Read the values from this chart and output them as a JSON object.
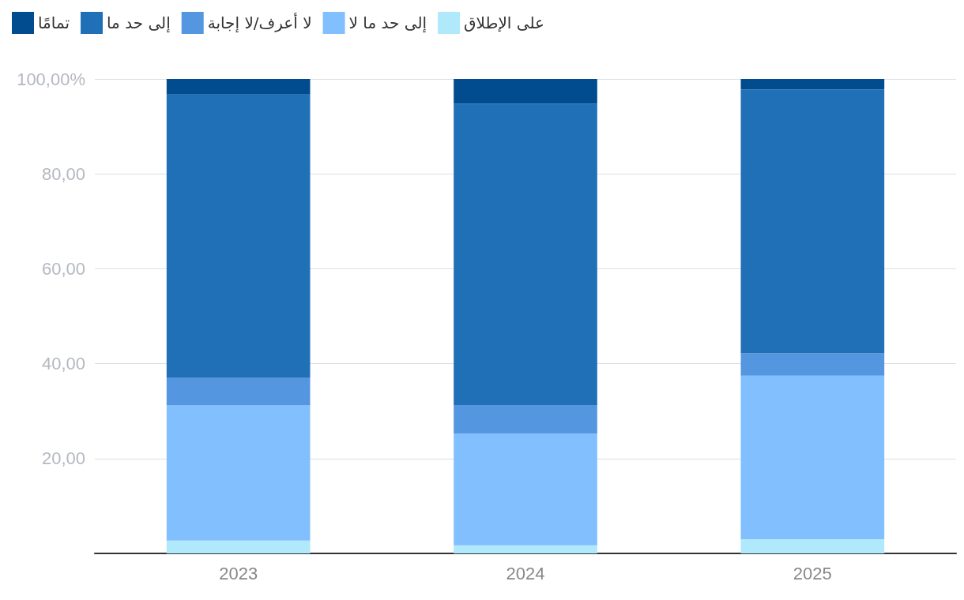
{
  "chart_data": {
    "type": "bar",
    "stacked": true,
    "categories": [
      "2023",
      "2024",
      "2025"
    ],
    "series": [
      {
        "name": "على الإطلاق",
        "color": "#b0e8fc",
        "values": [
          2.7,
          1.7,
          3.0
        ]
      },
      {
        "name": "إلى حد ما لا",
        "color": "#82bfff",
        "values": [
          28.5,
          23.6,
          34.5
        ]
      },
      {
        "name": "لا أعرف/لا إجابة",
        "color": "#5596e0",
        "values": [
          5.8,
          6.0,
          4.7
        ]
      },
      {
        "name": "إلى حد ما",
        "color": "#2070b8",
        "values": [
          59.7,
          63.5,
          55.6
        ]
      },
      {
        "name": "تمامًا",
        "color": "#004c8f",
        "values": [
          3.3,
          5.2,
          2.2
        ]
      }
    ],
    "ylim": [
      0,
      100
    ],
    "yticks": [
      {
        "value": 0,
        "label": null
      },
      {
        "value": 20,
        "label": "20,00"
      },
      {
        "value": 40,
        "label": "40,00"
      },
      {
        "value": 60,
        "label": "60,00"
      },
      {
        "value": 80,
        "label": "80,00"
      },
      {
        "value": 100,
        "label": "100,00%"
      }
    ],
    "grid": "y",
    "legend": "top left"
  }
}
